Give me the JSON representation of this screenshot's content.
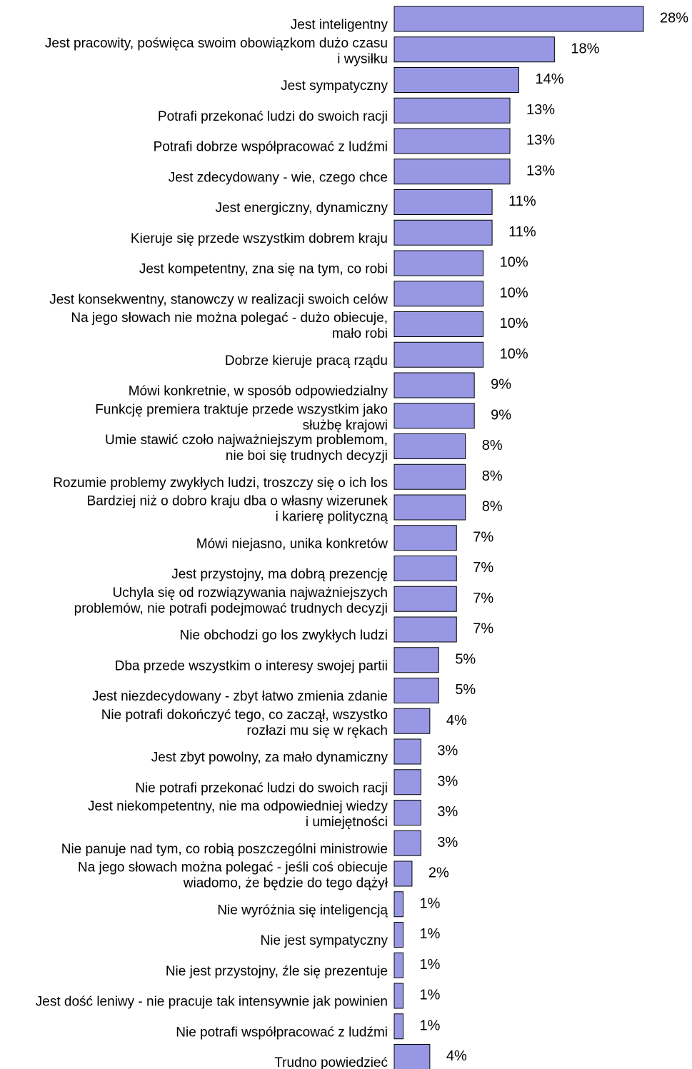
{
  "colors": {
    "bar_fill": "#9797e3",
    "bar_stroke": "#000000",
    "text": "#000000",
    "background": "#ffffff"
  },
  "chart_data": {
    "type": "bar",
    "orientation": "horizontal",
    "value_unit": "%",
    "xlim": [
      0,
      28
    ],
    "grid": false,
    "legend": "none",
    "categories": [
      [
        "Jest inteligentny"
      ],
      [
        "Jest pracowity, poświęca swoim obowiązkom dużo czasu",
        "i wysiłku"
      ],
      [
        "Jest sympatyczny"
      ],
      [
        "Potrafi przekonać ludzi do swoich racji"
      ],
      [
        "Potrafi dobrze współpracować z ludźmi"
      ],
      [
        "Jest zdecydowany - wie, czego chce"
      ],
      [
        "Jest energiczny, dynamiczny"
      ],
      [
        "Kieruje się przede wszystkim dobrem kraju"
      ],
      [
        "Jest kompetentny, zna się na tym, co robi"
      ],
      [
        "Jest konsekwentny, stanowczy w realizacji swoich celów"
      ],
      [
        "Na jego słowach nie można polegać - dużo obiecuje,",
        "mało robi"
      ],
      [
        "Dobrze kieruje pracą rządu"
      ],
      [
        "Mówi konkretnie, w sposób odpowiedzialny"
      ],
      [
        "Funkcję premiera traktuje przede wszystkim jako",
        "służbę krajowi"
      ],
      [
        "Umie stawić czoło najważniejszym problemom,",
        "nie boi się trudnych decyzji"
      ],
      [
        "Rozumie problemy zwykłych ludzi, troszczy się o ich los"
      ],
      [
        "Bardziej niż o dobro kraju dba o własny wizerunek",
        "i karierę polityczną"
      ],
      [
        "Mówi niejasno, unika konkretów"
      ],
      [
        "Jest przystojny, ma dobrą prezencję"
      ],
      [
        "Uchyla się od rozwiązywania najważniejszych",
        "problemów, nie potrafi podejmować trudnych decyzji"
      ],
      [
        "Nie obchodzi go los zwykłych ludzi"
      ],
      [
        "Dba przede wszystkim o interesy swojej partii"
      ],
      [
        "Jest niezdecydowany - zbyt łatwo zmienia zdanie"
      ],
      [
        "Nie potrafi dokończyć tego, co zaczął, wszystko",
        "rozłazi mu się w rękach"
      ],
      [
        "Jest zbyt powolny, za mało dynamiczny"
      ],
      [
        "Nie potrafi przekonać ludzi do swoich racji"
      ],
      [
        "Jest niekompetentny, nie ma odpowiedniej wiedzy",
        "i umiejętności"
      ],
      [
        "Nie panuje nad tym, co robią poszczególni ministrowie"
      ],
      [
        "Na jego słowach można polegać - jeśli coś obiecuje",
        "wiadomo, że będzie do tego dążył"
      ],
      [
        "Nie wyróżnia się inteligencją"
      ],
      [
        "Nie jest sympatyczny"
      ],
      [
        "Nie jest przystojny, źle się prezentuje"
      ],
      [
        "Jest dość leniwy - nie pracuje tak intensywnie jak powinien"
      ],
      [
        "Nie potrafi współpracować z ludźmi"
      ],
      [
        "Trudno powiedzieć"
      ]
    ],
    "values": [
      28,
      18,
      14,
      13,
      13,
      13,
      11,
      11,
      10,
      10,
      10,
      10,
      9,
      9,
      8,
      8,
      8,
      7,
      7,
      7,
      7,
      5,
      5,
      4,
      3,
      3,
      3,
      3,
      2,
      1,
      1,
      1,
      1,
      1,
      4
    ],
    "value_labels": [
      "28%",
      "18%",
      "14%",
      "13%",
      "13%",
      "13%",
      "11%",
      "11%",
      "10%",
      "10%",
      "10%",
      "10%",
      "9%",
      "9%",
      "8%",
      "8%",
      "8%",
      "7%",
      "7%",
      "7%",
      "7%",
      "5%",
      "5%",
      "4%",
      "3%",
      "3%",
      "3%",
      "3%",
      "2%",
      "1%",
      "1%",
      "1%",
      "1%",
      "1%",
      "4%"
    ]
  }
}
